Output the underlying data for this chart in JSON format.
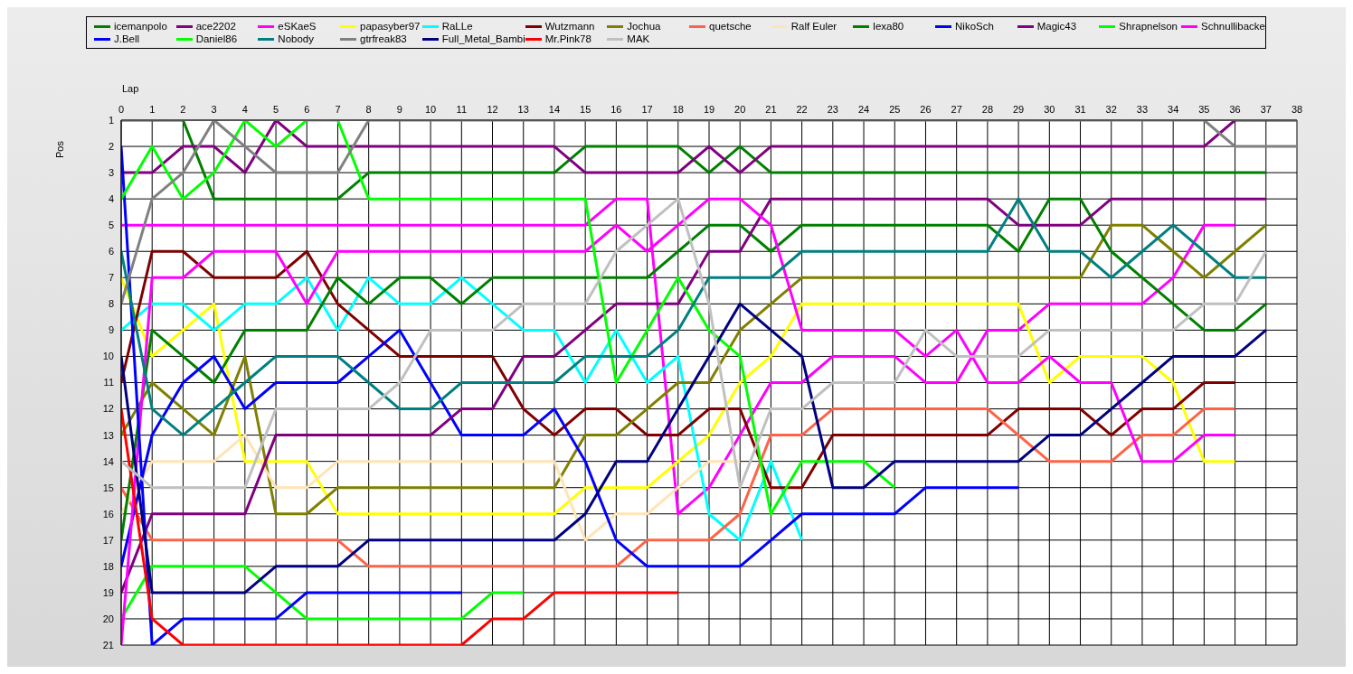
{
  "chart_data": {
    "type": "line",
    "xlabel": "Lap",
    "ylabel": "Pos",
    "xlim": [
      0,
      38
    ],
    "xticks": [
      0,
      1,
      2,
      3,
      4,
      5,
      6,
      7,
      8,
      9,
      10,
      11,
      12,
      13,
      14,
      15,
      16,
      17,
      18,
      19,
      20,
      21,
      22,
      23,
      24,
      25,
      26,
      27,
      28,
      29,
      30,
      31,
      32,
      33,
      34,
      35,
      36,
      37,
      38
    ],
    "ylim": [
      21,
      1
    ],
    "yticks": [
      1,
      2,
      3,
      4,
      5,
      6,
      7,
      8,
      9,
      10,
      11,
      12,
      13,
      14,
      15,
      16,
      17,
      18,
      19,
      20,
      21
    ],
    "grid": true,
    "legend": "top",
    "marker": "none",
    "line_style": "solid",
    "series": [
      {
        "name": "icemanpolo",
        "color": "#008000",
        "x": [
          0,
          1,
          2,
          3,
          4,
          5,
          6,
          7,
          8,
          9,
          10,
          11,
          12,
          13,
          14,
          15,
          16,
          17,
          18,
          19,
          20,
          21,
          22,
          23,
          24,
          25,
          26,
          27,
          28,
          29,
          30,
          31,
          32,
          33,
          34,
          35,
          36,
          37
        ],
        "values": [
          1,
          1,
          1,
          4,
          4,
          4,
          4,
          4,
          3,
          3,
          3,
          3,
          3,
          3,
          3,
          2,
          2,
          2,
          2,
          3,
          2,
          3,
          3,
          3,
          3,
          3,
          3,
          3,
          3,
          3,
          3,
          3,
          3,
          3,
          3,
          3,
          3,
          3
        ]
      },
      {
        "name": "ace2202",
        "color": "#800080",
        "x": [
          0,
          1,
          2,
          3,
          4,
          5,
          6,
          7,
          8,
          9,
          10,
          11,
          12,
          13,
          14,
          15,
          16,
          17,
          18,
          19,
          20,
          21,
          22,
          23,
          24,
          25,
          26,
          27,
          28,
          29,
          30,
          31,
          32,
          33,
          34,
          35,
          36,
          37,
          38
        ],
        "values": [
          3,
          3,
          2,
          2,
          3,
          1,
          2,
          2,
          2,
          2,
          2,
          2,
          2,
          2,
          2,
          3,
          3,
          3,
          3,
          2,
          3,
          2,
          2,
          2,
          2,
          2,
          2,
          2,
          2,
          2,
          2,
          2,
          2,
          2,
          2,
          2,
          1,
          1,
          1
        ]
      },
      {
        "name": "eSKaeS",
        "color": "#ff00ff",
        "x": [
          0,
          1,
          2,
          3,
          4,
          5,
          6,
          7,
          8,
          9,
          10,
          11,
          12,
          13,
          14,
          15,
          16,
          17,
          18,
          19,
          20,
          21,
          22,
          23,
          24,
          25,
          26,
          27,
          28,
          29,
          30,
          31,
          32,
          33,
          34,
          35,
          36
        ],
        "values": [
          5,
          5,
          5,
          5,
          5,
          5,
          5,
          5,
          5,
          5,
          5,
          5,
          5,
          5,
          5,
          5,
          4,
          4,
          16,
          15,
          13,
          11,
          11,
          10,
          10,
          10,
          11,
          11,
          9,
          9,
          8,
          8,
          8,
          8,
          7,
          5,
          5
        ]
      },
      {
        "name": "papasyber97",
        "color": "#ffff00",
        "x": [
          0,
          1,
          2,
          3,
          4,
          5,
          6,
          7,
          8,
          9,
          10,
          11,
          12,
          13,
          14,
          15,
          16,
          17,
          18,
          19,
          20,
          21,
          22,
          23,
          24,
          25,
          26,
          27,
          28,
          29,
          30,
          31,
          32,
          33,
          34,
          35,
          36
        ],
        "values": [
          7,
          10,
          9,
          8,
          14,
          14,
          14,
          16,
          16,
          16,
          16,
          16,
          16,
          16,
          16,
          15,
          15,
          15,
          14,
          13,
          11,
          10,
          8,
          8,
          8,
          8,
          8,
          8,
          8,
          8,
          11,
          10,
          10,
          10,
          11,
          14,
          14
        ]
      },
      {
        "name": "RaLLe",
        "color": "#00ffff",
        "x": [
          0,
          1,
          2,
          3,
          4,
          5,
          6,
          7,
          8,
          9,
          10,
          11,
          12,
          13,
          14,
          15,
          16,
          17,
          18,
          19,
          20,
          21,
          22
        ],
        "values": [
          9,
          8,
          8,
          9,
          8,
          8,
          7,
          9,
          7,
          8,
          8,
          7,
          8,
          9,
          9,
          11,
          9,
          11,
          10,
          16,
          17,
          14,
          17
        ]
      },
      {
        "name": "Wutzmann",
        "color": "#800000",
        "x": [
          0,
          1,
          2,
          3,
          4,
          5,
          6,
          7,
          8,
          9,
          10,
          11,
          12,
          13,
          14,
          15,
          16,
          17,
          18,
          19,
          20,
          21,
          22,
          23,
          24,
          25,
          26,
          27,
          28,
          29,
          30,
          31,
          32,
          33,
          34,
          35,
          36
        ],
        "values": [
          11,
          6,
          6,
          7,
          7,
          7,
          6,
          8,
          9,
          10,
          10,
          10,
          10,
          12,
          13,
          12,
          12,
          13,
          13,
          12,
          12,
          15,
          15,
          13,
          13,
          13,
          13,
          13,
          13,
          12,
          12,
          12,
          13,
          12,
          12,
          11,
          11
        ]
      },
      {
        "name": "Jochua",
        "color": "#808000",
        "x": [
          0,
          1,
          2,
          3,
          4,
          5,
          6,
          7,
          8,
          9,
          10,
          11,
          12,
          13,
          14,
          15,
          16,
          17,
          18,
          19,
          20,
          21,
          22,
          23,
          24,
          25,
          26,
          27,
          28,
          29,
          30,
          31,
          32,
          33,
          34,
          35,
          36,
          37
        ],
        "values": [
          13,
          11,
          12,
          13,
          10,
          16,
          16,
          15,
          15,
          15,
          15,
          15,
          15,
          15,
          15,
          13,
          13,
          12,
          11,
          11,
          9,
          8,
          7,
          7,
          7,
          7,
          7,
          7,
          7,
          7,
          7,
          7,
          5,
          5,
          6,
          7,
          6,
          5
        ]
      },
      {
        "name": "quetsche",
        "color": "#ff6347",
        "x": [
          0,
          1,
          2,
          3,
          4,
          5,
          6,
          7,
          8,
          9,
          10,
          11,
          12,
          13,
          14,
          15,
          16,
          17,
          18,
          19,
          20,
          21,
          22,
          23,
          24,
          25,
          26,
          27,
          28,
          29,
          30,
          31,
          32,
          33,
          34,
          35,
          36
        ],
        "values": [
          15,
          17,
          17,
          17,
          17,
          17,
          17,
          17,
          18,
          18,
          18,
          18,
          18,
          18,
          18,
          18,
          18,
          17,
          17,
          17,
          16,
          13,
          13,
          12,
          12,
          12,
          12,
          12,
          12,
          13,
          14,
          14,
          14,
          13,
          13,
          12,
          12
        ]
      },
      {
        "name": "Ralf Euler",
        "color": "#ffe4b5",
        "x": [
          0,
          1,
          2,
          3,
          4,
          5,
          6,
          7,
          8,
          9,
          10,
          11,
          12,
          13,
          14,
          15,
          16,
          17,
          18,
          19,
          20
        ],
        "values": [
          16,
          14,
          14,
          14,
          13,
          15,
          15,
          14,
          14,
          14,
          14,
          14,
          14,
          14,
          14,
          17,
          16,
          16,
          15,
          14,
          14
        ]
      },
      {
        "name": "lexa80",
        "color": "#008000",
        "x": [
          0,
          1,
          2,
          3,
          4,
          5,
          6,
          7,
          8,
          9,
          10,
          11,
          12,
          13,
          14,
          15,
          16,
          17,
          18,
          19,
          20,
          21,
          22,
          23,
          24,
          25,
          26,
          27,
          28,
          29,
          30,
          31,
          32,
          33,
          34,
          35,
          36,
          37
        ],
        "values": [
          17,
          9,
          10,
          11,
          9,
          9,
          9,
          7,
          8,
          7,
          7,
          8,
          7,
          7,
          7,
          7,
          7,
          7,
          6,
          5,
          5,
          6,
          5,
          5,
          5,
          5,
          5,
          5,
          5,
          6,
          4,
          4,
          6,
          7,
          8,
          9,
          9,
          8
        ]
      },
      {
        "name": "NikoSch",
        "color": "#0000ff",
        "x": [
          0,
          1,
          2,
          3,
          4,
          5,
          6,
          7,
          8,
          9,
          10,
          11,
          12,
          13,
          14,
          15,
          16,
          17,
          18,
          19,
          20,
          21,
          22,
          23,
          24,
          25,
          26,
          27,
          28,
          29
        ],
        "values": [
          18,
          13,
          11,
          10,
          12,
          11,
          11,
          11,
          10,
          9,
          11,
          13,
          13,
          13,
          12,
          14,
          17,
          18,
          18,
          18,
          18,
          17,
          16,
          16,
          16,
          16,
          15,
          15,
          15,
          15
        ]
      },
      {
        "name": "Magic43",
        "color": "#800080",
        "x": [
          0,
          1,
          2,
          3,
          4,
          5,
          6,
          7,
          8,
          9,
          10,
          11,
          12,
          13,
          14,
          15,
          16,
          17,
          18,
          19,
          20,
          21,
          22,
          23,
          24,
          25,
          26,
          27,
          28,
          29,
          30,
          31,
          32,
          33,
          34,
          35,
          36,
          37
        ],
        "values": [
          19,
          16,
          16,
          16,
          16,
          13,
          13,
          13,
          13,
          13,
          13,
          12,
          12,
          10,
          10,
          9,
          8,
          8,
          8,
          6,
          6,
          4,
          4,
          4,
          4,
          4,
          4,
          4,
          4,
          5,
          5,
          5,
          4,
          4,
          4,
          4,
          4,
          4
        ]
      },
      {
        "name": "Shrapnelson",
        "color": "#00ff00",
        "x": [
          0,
          1,
          2,
          3,
          4,
          5,
          6,
          7,
          8,
          9,
          10,
          11,
          12,
          13
        ],
        "values": [
          20,
          18,
          18,
          18,
          18,
          19,
          20,
          20,
          20,
          20,
          20,
          20,
          19,
          19
        ]
      },
      {
        "name": "Schnullibacke",
        "color": "#ff00ff",
        "x": [
          0,
          1,
          2,
          3,
          4,
          5,
          6,
          7,
          8,
          9,
          10,
          11,
          12,
          13,
          14,
          15,
          16,
          17,
          18,
          19,
          20,
          21,
          22,
          23,
          24,
          25,
          26,
          27,
          28,
          29,
          30,
          31,
          32,
          33,
          34,
          35,
          36
        ],
        "values": [
          21,
          7,
          7,
          6,
          6,
          6,
          8,
          6,
          6,
          6,
          6,
          6,
          6,
          6,
          6,
          6,
          5,
          6,
          5,
          4,
          4,
          5,
          9,
          9,
          9,
          9,
          10,
          9,
          11,
          11,
          10,
          11,
          11,
          14,
          14,
          13,
          13
        ]
      },
      {
        "name": "J.Bell",
        "color": "#0000ff",
        "x": [
          0,
          1,
          2,
          3,
          4,
          5,
          6,
          7,
          8,
          9,
          10,
          11
        ],
        "values": [
          2,
          21,
          20,
          20,
          20,
          20,
          19,
          19,
          19,
          19,
          19,
          19
        ]
      },
      {
        "name": "Daniel86",
        "color": "#00ff00",
        "x": [
          0,
          1,
          2,
          3,
          4,
          5,
          6,
          7,
          8,
          9,
          10,
          11,
          12,
          13,
          14,
          15,
          16,
          17,
          18,
          19,
          20,
          21,
          22,
          23,
          24,
          25
        ],
        "values": [
          4,
          2,
          4,
          3,
          1,
          2,
          1,
          1,
          4,
          4,
          4,
          4,
          4,
          4,
          4,
          4,
          11,
          9,
          7,
          9,
          10,
          16,
          14,
          14,
          14,
          15
        ]
      },
      {
        "name": "Nobody",
        "color": "#008080",
        "x": [
          0,
          1,
          2,
          3,
          4,
          5,
          6,
          7,
          8,
          9,
          10,
          11,
          12,
          13,
          14,
          15,
          16,
          17,
          18,
          19,
          20,
          21,
          22,
          23,
          24,
          25,
          26,
          27,
          28,
          29,
          30,
          31,
          32,
          33,
          34,
          35,
          36,
          37
        ],
        "values": [
          6,
          12,
          13,
          12,
          11,
          10,
          10,
          10,
          11,
          12,
          12,
          11,
          11,
          11,
          11,
          10,
          10,
          10,
          9,
          7,
          7,
          7,
          6,
          6,
          6,
          6,
          6,
          6,
          6,
          4,
          6,
          6,
          7,
          6,
          5,
          6,
          7,
          7
        ]
      },
      {
        "name": "gtrfreak83",
        "color": "#808080",
        "x": [
          0,
          1,
          2,
          3,
          4,
          5,
          6,
          7,
          8,
          9,
          10,
          11,
          12,
          13,
          14,
          15,
          16,
          17,
          18,
          19,
          20,
          21,
          22,
          23,
          24,
          25,
          26,
          27,
          28,
          29,
          30,
          31,
          32,
          33,
          34,
          35,
          36,
          37,
          38
        ],
        "values": [
          8,
          4,
          3,
          1,
          2,
          3,
          3,
          3,
          1,
          1,
          1,
          1,
          1,
          1,
          1,
          1,
          1,
          1,
          1,
          1,
          1,
          1,
          1,
          1,
          1,
          1,
          1,
          1,
          1,
          1,
          1,
          1,
          1,
          1,
          1,
          1,
          2,
          2,
          2
        ]
      },
      {
        "name": "Full_Metal_Bambi",
        "color": "#000080",
        "x": [
          0,
          1,
          2,
          3,
          4,
          5,
          6,
          7,
          8,
          9,
          10,
          11,
          12,
          13,
          14,
          15,
          16,
          17,
          18,
          19,
          20,
          21,
          22,
          23,
          24,
          25,
          26,
          27,
          28,
          29,
          30,
          31,
          32,
          33,
          34,
          35,
          36,
          37
        ],
        "values": [
          10,
          19,
          19,
          19,
          19,
          18,
          18,
          18,
          17,
          17,
          17,
          17,
          17,
          17,
          17,
          16,
          14,
          14,
          12,
          10,
          8,
          9,
          10,
          15,
          15,
          14,
          14,
          14,
          14,
          14,
          13,
          13,
          12,
          11,
          10,
          10,
          10,
          9
        ]
      },
      {
        "name": "Mr.Pink78",
        "color": "#ff0000",
        "x": [
          0,
          1,
          2,
          3,
          4,
          5,
          6,
          7,
          8,
          9,
          10,
          11,
          12,
          13,
          14,
          15,
          16,
          17,
          18
        ],
        "values": [
          12,
          20,
          21,
          21,
          21,
          21,
          21,
          21,
          21,
          21,
          21,
          21,
          20,
          20,
          19,
          19,
          19,
          19,
          19
        ]
      },
      {
        "name": "MAK",
        "color": "#c0c0c0",
        "x": [
          0,
          1,
          2,
          3,
          4,
          5,
          6,
          7,
          8,
          9,
          10,
          11,
          12,
          13,
          14,
          15,
          16,
          17,
          18,
          19,
          20,
          21,
          22,
          23,
          24,
          25,
          26,
          27,
          28,
          29,
          30,
          31,
          32,
          33,
          34,
          35,
          36,
          37
        ],
        "values": [
          14,
          15,
          15,
          15,
          15,
          12,
          12,
          12,
          12,
          11,
          9,
          9,
          9,
          8,
          8,
          8,
          6,
          5,
          4,
          8,
          15,
          12,
          12,
          11,
          11,
          11,
          9,
          10,
          10,
          10,
          9,
          9,
          9,
          9,
          9,
          8,
          8,
          6
        ]
      }
    ]
  }
}
